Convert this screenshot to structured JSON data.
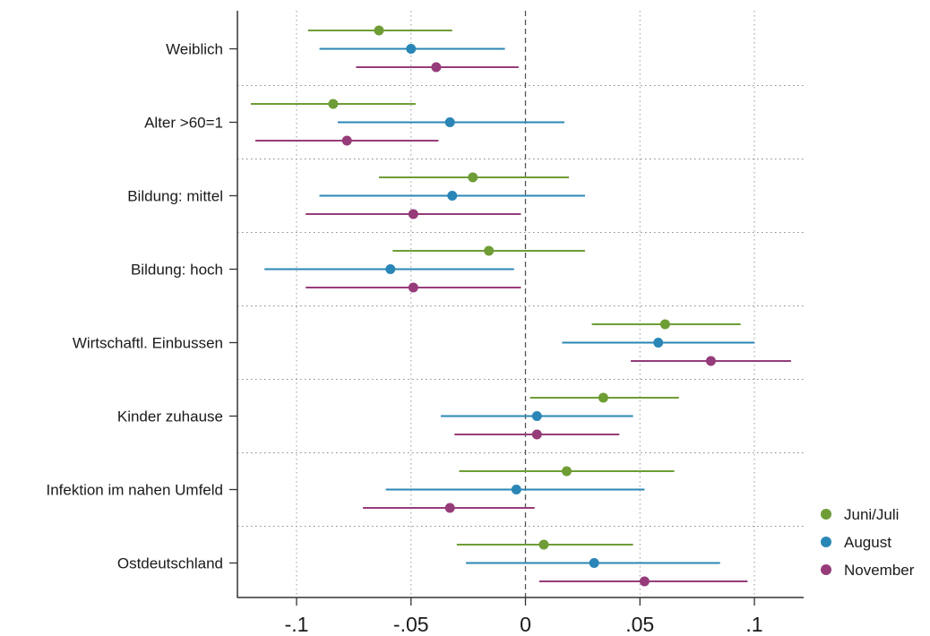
{
  "chart_data": {
    "type": "scatter",
    "subtype": "coefficient-plot-with-confidence-intervals",
    "title": "",
    "xlabel": "",
    "ylabel": "",
    "xlim": [
      -0.125,
      0.122
    ],
    "x_ticks": [
      {
        "value": -0.1,
        "label": "-.1"
      },
      {
        "value": -0.05,
        "label": "-.05"
      },
      {
        "value": 0,
        "label": "0"
      },
      {
        "value": 0.05,
        "label": ".05"
      },
      {
        "value": 0.1,
        "label": ".1"
      }
    ],
    "reference_line": {
      "x": 0,
      "style": "dashed"
    },
    "grid": {
      "vertical": true,
      "horizontal_separators": true,
      "style": "dotted"
    },
    "legend_position": "bottom-right",
    "categories": [
      "Weiblich",
      "Alter >60=1",
      "Bildung: mittel",
      "Bildung: hoch",
      "Wirtschaftl. Einbussen",
      "Kinder zuhause",
      "Infektion im nahen Umfeld",
      "Ostdeutschland"
    ],
    "series": [
      {
        "name": "Juni/Juli",
        "color": "#6e9d35",
        "points": [
          {
            "est": -0.064,
            "lo": -0.095,
            "hi": -0.032
          },
          {
            "est": -0.084,
            "lo": -0.12,
            "hi": -0.048
          },
          {
            "est": -0.023,
            "lo": -0.064,
            "hi": 0.019
          },
          {
            "est": -0.016,
            "lo": -0.058,
            "hi": 0.026
          },
          {
            "est": 0.061,
            "lo": 0.029,
            "hi": 0.094
          },
          {
            "est": 0.034,
            "lo": 0.002,
            "hi": 0.067
          },
          {
            "est": 0.018,
            "lo": -0.029,
            "hi": 0.065
          },
          {
            "est": 0.008,
            "lo": -0.03,
            "hi": 0.047
          }
        ]
      },
      {
        "name": "August",
        "color": "#2a86b6",
        "points": [
          {
            "est": -0.05,
            "lo": -0.09,
            "hi": -0.009
          },
          {
            "est": -0.033,
            "lo": -0.082,
            "hi": 0.017
          },
          {
            "est": -0.032,
            "lo": -0.09,
            "hi": 0.026
          },
          {
            "est": -0.059,
            "lo": -0.114,
            "hi": -0.005
          },
          {
            "est": 0.058,
            "lo": 0.016,
            "hi": 0.1
          },
          {
            "est": 0.005,
            "lo": -0.037,
            "hi": 0.047
          },
          {
            "est": -0.004,
            "lo": -0.061,
            "hi": 0.052
          },
          {
            "est": 0.03,
            "lo": -0.026,
            "hi": 0.085
          }
        ]
      },
      {
        "name": "November",
        "color": "#963c7a",
        "points": [
          {
            "est": -0.039,
            "lo": -0.074,
            "hi": -0.003
          },
          {
            "est": -0.078,
            "lo": -0.118,
            "hi": -0.038
          },
          {
            "est": -0.049,
            "lo": -0.096,
            "hi": -0.002
          },
          {
            "est": -0.049,
            "lo": -0.096,
            "hi": -0.002
          },
          {
            "est": 0.081,
            "lo": 0.046,
            "hi": 0.116
          },
          {
            "est": 0.005,
            "lo": -0.031,
            "hi": 0.041
          },
          {
            "est": -0.033,
            "lo": -0.071,
            "hi": 0.004
          },
          {
            "est": 0.052,
            "lo": 0.006,
            "hi": 0.097
          }
        ]
      }
    ]
  }
}
